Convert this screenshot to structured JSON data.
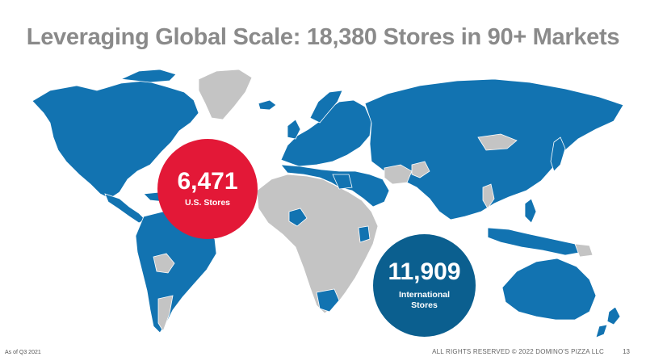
{
  "slide": {
    "title": "Leveraging Global Scale: 18,380 Stores in 90+ Markets",
    "as_of": "As of Q3 2021",
    "copyright": "ALL RIGHTS RESERVED © 2022 DOMINO'S PIZZA LLC",
    "page_number": "13"
  },
  "us_stores": {
    "count": "6,471",
    "label": "U.S. Stores",
    "color": "#e31837"
  },
  "international_stores": {
    "count": "11,909",
    "label_line1": "International",
    "label_line2": "Stores",
    "color": "#0b5f8f"
  },
  "map": {
    "present_color": "#1273b1",
    "absent_color": "#c4c4c4",
    "regions": [
      {
        "name": "north-america",
        "status": "present"
      },
      {
        "name": "greenland",
        "status": "absent"
      },
      {
        "name": "central-america",
        "status": "present"
      },
      {
        "name": "south-america",
        "status": "present"
      },
      {
        "name": "europe",
        "status": "present"
      },
      {
        "name": "north-africa-middle-east",
        "status": "present"
      },
      {
        "name": "africa",
        "status": "absent"
      },
      {
        "name": "russia-asia",
        "status": "present"
      },
      {
        "name": "australia",
        "status": "present"
      },
      {
        "name": "new-zealand",
        "status": "present"
      }
    ]
  }
}
